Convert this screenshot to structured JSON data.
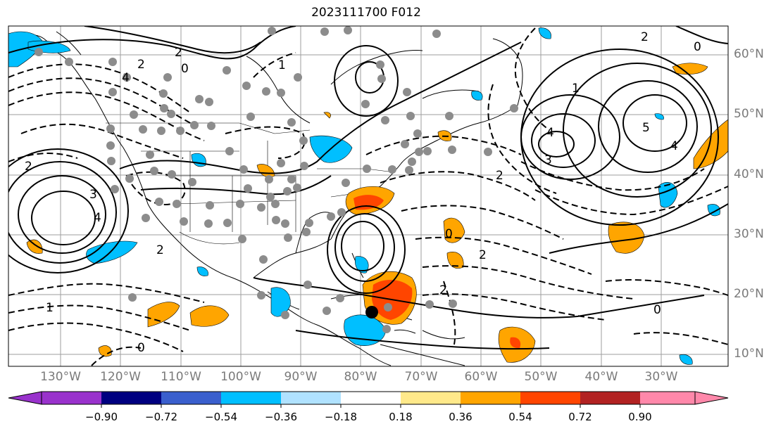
{
  "title": "2023111700 F012",
  "lat_labels": [
    "60°N",
    "50°N",
    "40°N",
    "30°N",
    "20°N",
    "10°N"
  ],
  "lon_labels": [
    "130°W",
    "120°W",
    "110°W",
    "100°W",
    "90°W",
    "80°W",
    "70°W",
    "60°W",
    "50°W",
    "40°W",
    "30°W"
  ],
  "colorbar": {
    "ticks": [
      "−0.90",
      "−0.72",
      "−0.54",
      "−0.36",
      "−0.18",
      "0.18",
      "0.36",
      "0.54",
      "0.72",
      "0.90"
    ],
    "colors": [
      "#9932cc",
      "#000080",
      "#3a5fcd",
      "#00bfff",
      "#b0e2ff",
      "#ffffff",
      "#ffe98a",
      "#ffa500",
      "#ff4500",
      "#b22222",
      "#ff88aa"
    ]
  },
  "contour_labels": [
    "2",
    "2",
    "0",
    "4",
    "1",
    "3",
    "4",
    "2",
    "3",
    "4",
    "5",
    "4",
    "1",
    "2",
    "0",
    "2",
    "2",
    "2",
    "0",
    "0",
    "2",
    "1",
    "0"
  ],
  "legend_fill": {
    "positive": "#ffa500",
    "strong_positive": "#ff4500",
    "negative": "#00bfff"
  },
  "marker": "storm-center"
}
